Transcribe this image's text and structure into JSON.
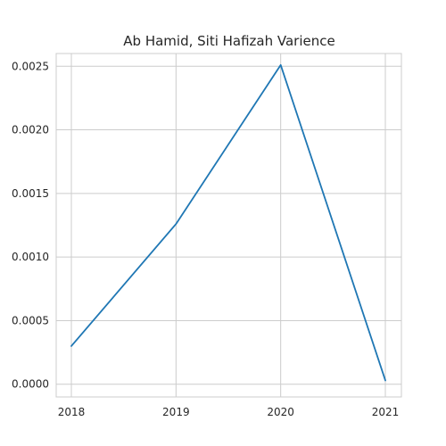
{
  "chart_data": {
    "type": "line",
    "title": "Ab Hamid, Siti Hafizah Varience",
    "xlabel": "",
    "ylabel": "",
    "x": [
      "2018",
      "2019",
      "2020",
      "2021"
    ],
    "series": [
      {
        "values": [
          0.0003,
          0.00126,
          0.00251,
          3e-05
        ]
      }
    ],
    "yticks": [
      0.0,
      0.0005,
      0.001,
      0.0015,
      0.002,
      0.0025
    ],
    "ytick_labels": [
      "0.0000",
      "0.0005",
      "0.0010",
      "0.0015",
      "0.0020",
      "0.0025"
    ],
    "ylim": [
      -0.0001,
      0.0026
    ],
    "grid": true,
    "colors": {
      "line": "#1f77b4",
      "grid": "#cccccc",
      "text": "#262626"
    }
  }
}
